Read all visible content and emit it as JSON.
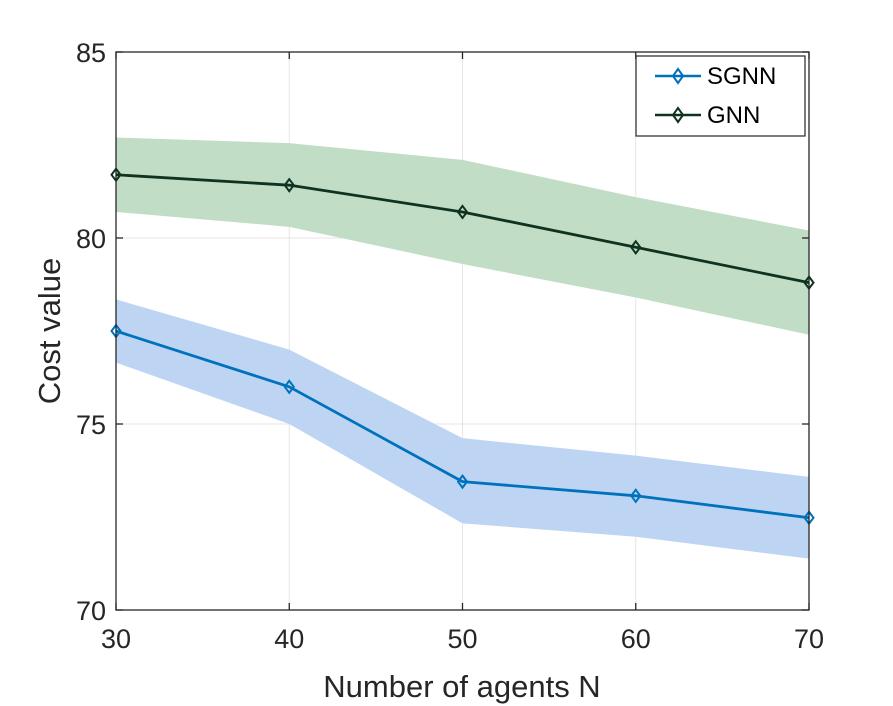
{
  "chart_data": {
    "type": "line",
    "title": "",
    "xlabel": "Number of agents N",
    "ylabel": "Cost value",
    "x": [
      30,
      40,
      50,
      60,
      70
    ],
    "xlim": [
      30,
      70
    ],
    "ylim": [
      70,
      85
    ],
    "xticks": [
      30,
      40,
      50,
      60,
      70
    ],
    "yticks": [
      70,
      75,
      80,
      85
    ],
    "grid": true,
    "legend_position": "top-right",
    "series": [
      {
        "name": "SGNN",
        "values": [
          77.5,
          76.0,
          73.45,
          73.07,
          72.48
        ],
        "band_upper": [
          78.35,
          77.0,
          74.62,
          74.15,
          73.58
        ],
        "band_lower": [
          76.65,
          75.0,
          72.33,
          71.97,
          71.38
        ],
        "color": "#0072BD",
        "band_color": "#BDD5F3",
        "marker": "diamond"
      },
      {
        "name": "GNN",
        "values": [
          81.7,
          81.42,
          80.7,
          79.75,
          78.8
        ],
        "band_upper": [
          82.7,
          82.55,
          82.1,
          81.1,
          80.2
        ],
        "band_lower": [
          80.7,
          80.3,
          79.3,
          78.4,
          77.4
        ],
        "color": "#0F3320",
        "band_color": "#C2DDC6",
        "marker": "diamond"
      }
    ]
  }
}
